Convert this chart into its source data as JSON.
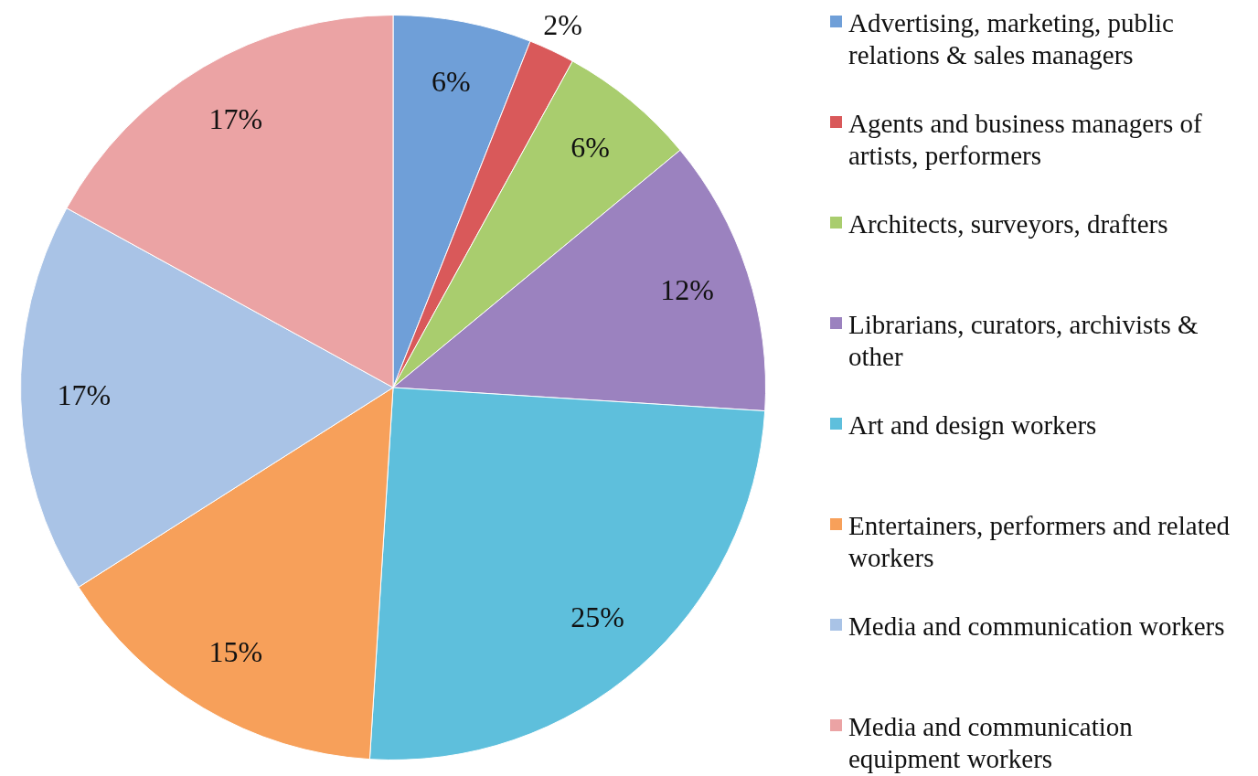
{
  "chart_data": {
    "type": "pie",
    "categories": [
      "Advertising, marketing, public relations & sales managers",
      "Agents and business managers of artists, performers",
      "Architects,  surveyors, drafters",
      "Librarians, curators, archivists & other",
      "Art and design workers",
      "Entertainers, performers and related workers",
      "Media and communication workers",
      "Media and communication equipment workers"
    ],
    "values": [
      6,
      2,
      6,
      12,
      25,
      15,
      17,
      17
    ],
    "value_labels": [
      "6%",
      "2%",
      "6%",
      "12%",
      "25%",
      "15%",
      "17%",
      "17%"
    ],
    "colors": [
      "#6f9fd8",
      "#d9595a",
      "#a9cd6e",
      "#9b82bf",
      "#5ebfdc",
      "#f7a05a",
      "#a9c3e6",
      "#eba3a4"
    ],
    "legend": "right"
  }
}
